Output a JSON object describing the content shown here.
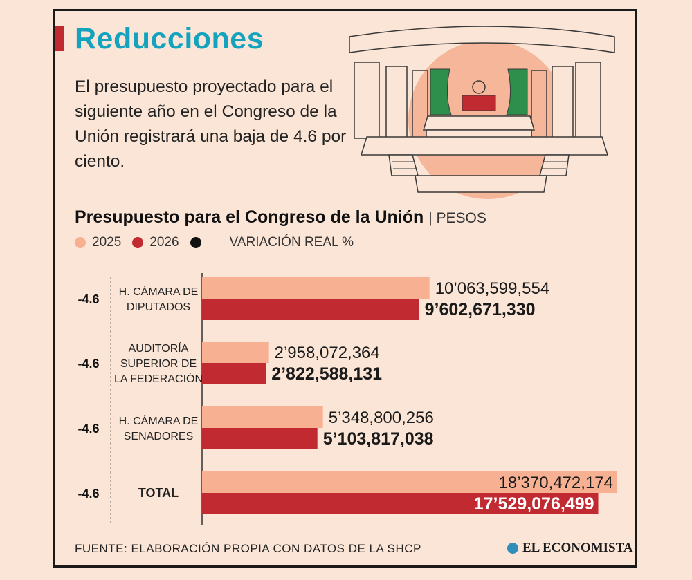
{
  "header": {
    "title": "Reducciones",
    "intro": "El presupuesto proyectado para el siguiente año en el Congreso de la Unión registrará una baja de 4.6 por ciento."
  },
  "chart_data": {
    "type": "bar",
    "orientation": "horizontal",
    "title": "Presupuesto para el Congreso de la Unión",
    "unit": "| PESOS",
    "legend": [
      {
        "label": "2025",
        "color": "#f7b192"
      },
      {
        "label": "2026",
        "color": "#c22a32"
      },
      {
        "label": "VARIACIÓN REAL %",
        "color": "#111111"
      }
    ],
    "categories": [
      [
        "H. CÁMARA DE",
        "DIPUTADOS"
      ],
      [
        "AUDITORÍA",
        "SUPERIOR DE",
        "LA FEDERACIÓN"
      ],
      [
        "H. CÁMARA DE",
        "SENADORES"
      ],
      [
        "TOTAL"
      ]
    ],
    "series": [
      {
        "name": "2025",
        "color": "#f7b192",
        "values": [
          10063599554,
          2958072364,
          5348800256,
          18370472174
        ],
        "labels": [
          "10’063,599,554",
          "2’958,072,364",
          "5’348,800,256",
          "18’370,472,174"
        ]
      },
      {
        "name": "2026",
        "color": "#c22a32",
        "values": [
          9602671330,
          2822588131,
          5103817038,
          17529076499
        ],
        "labels": [
          "9’602,671,330",
          "2’822,588,131",
          "5’103,817,038",
          "17’529,076,499"
        ]
      }
    ],
    "variation": [
      "-4.6",
      "-4.6",
      "-4.6",
      "-4.6"
    ]
  },
  "footer": {
    "source": "FUENTE: ELABORACIÓN PROPIA CON DATOS DE LA SHCP",
    "brand": "EL ECONOMISTA"
  }
}
